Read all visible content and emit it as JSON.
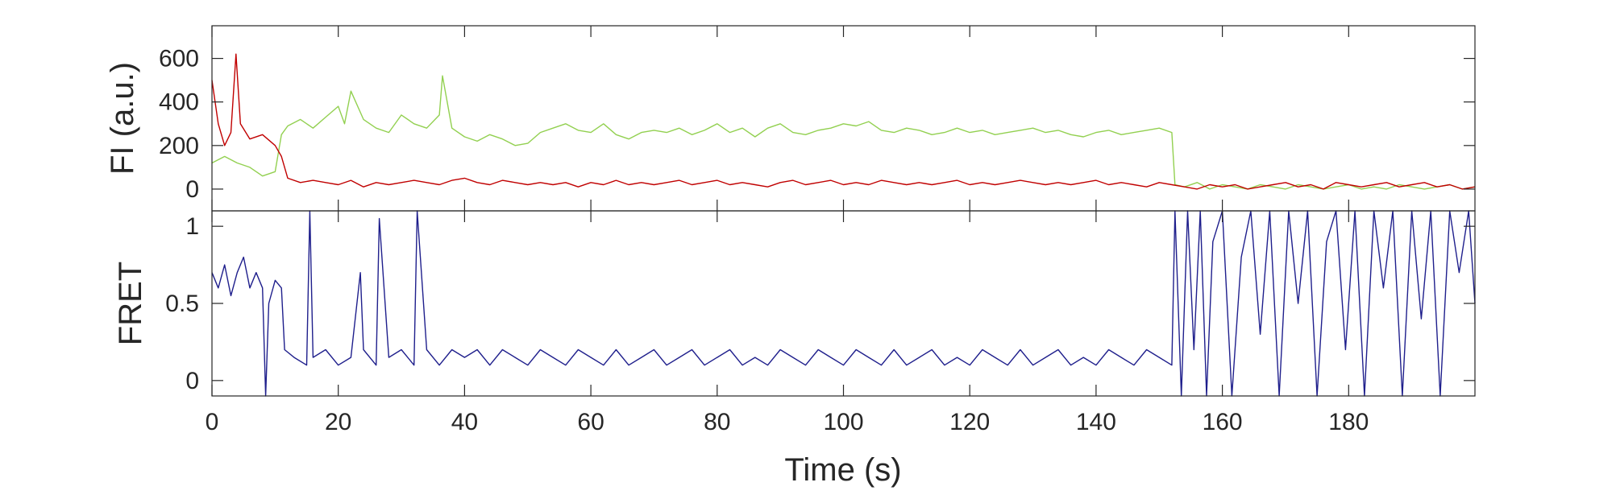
{
  "chart_data": [
    {
      "type": "line",
      "ylabel": "FI (a.u.)",
      "xlim": [
        0,
        200
      ],
      "ylim": [
        -100,
        750
      ],
      "yticks": [
        0,
        200,
        400,
        600
      ],
      "grid": false,
      "series": [
        {
          "color": "#92d050",
          "x": [
            0,
            2,
            4,
            6,
            8,
            10,
            11,
            12,
            14,
            16,
            18,
            20,
            21,
            22,
            24,
            26,
            28,
            30,
            32,
            34,
            36,
            36.5,
            38,
            40,
            42,
            44,
            46,
            48,
            50,
            52,
            54,
            56,
            58,
            60,
            62,
            64,
            66,
            68,
            70,
            72,
            74,
            76,
            78,
            80,
            82,
            84,
            86,
            88,
            90,
            92,
            94,
            96,
            98,
            100,
            102,
            104,
            106,
            108,
            110,
            112,
            114,
            116,
            118,
            120,
            122,
            124,
            126,
            128,
            130,
            132,
            134,
            136,
            138,
            140,
            142,
            144,
            146,
            148,
            150,
            152,
            152.5,
            154,
            156,
            158,
            160,
            162,
            164,
            166,
            168,
            170,
            172,
            174,
            176,
            178,
            180,
            182,
            184,
            186,
            188,
            190,
            192,
            194,
            196,
            198,
            200
          ],
          "values": [
            120,
            150,
            120,
            100,
            60,
            80,
            250,
            290,
            320,
            280,
            330,
            380,
            300,
            450,
            320,
            280,
            260,
            340,
            300,
            280,
            340,
            520,
            280,
            240,
            220,
            250,
            230,
            200,
            210,
            260,
            280,
            300,
            270,
            260,
            300,
            250,
            230,
            260,
            270,
            260,
            280,
            250,
            270,
            300,
            260,
            280,
            240,
            280,
            300,
            260,
            250,
            270,
            280,
            300,
            290,
            310,
            270,
            260,
            280,
            270,
            250,
            260,
            280,
            260,
            270,
            250,
            260,
            270,
            280,
            260,
            270,
            250,
            240,
            260,
            270,
            250,
            260,
            270,
            280,
            260,
            20,
            10,
            30,
            0,
            20,
            10,
            0,
            20,
            10,
            0,
            20,
            10,
            0,
            10,
            20,
            0,
            10,
            0,
            20,
            10,
            0,
            10,
            20,
            0,
            10
          ]
        },
        {
          "color": "#c00000",
          "x": [
            0,
            1,
            2,
            3,
            3.8,
            4.5,
            6,
            8,
            10,
            11,
            12,
            14,
            16,
            18,
            20,
            22,
            24,
            26,
            28,
            30,
            32,
            34,
            36,
            38,
            40,
            42,
            44,
            46,
            48,
            50,
            52,
            54,
            56,
            58,
            60,
            62,
            64,
            66,
            68,
            70,
            72,
            74,
            76,
            78,
            80,
            82,
            84,
            86,
            88,
            90,
            92,
            94,
            96,
            98,
            100,
            102,
            104,
            106,
            108,
            110,
            112,
            114,
            116,
            118,
            120,
            122,
            124,
            126,
            128,
            130,
            132,
            134,
            136,
            138,
            140,
            142,
            144,
            146,
            148,
            150,
            152,
            154,
            156,
            158,
            160,
            162,
            164,
            166,
            168,
            170,
            172,
            174,
            176,
            178,
            180,
            182,
            184,
            186,
            188,
            190,
            192,
            194,
            196,
            198,
            200
          ],
          "values": [
            500,
            300,
            200,
            260,
            620,
            300,
            230,
            250,
            200,
            150,
            50,
            30,
            40,
            30,
            20,
            40,
            10,
            30,
            20,
            30,
            40,
            30,
            20,
            40,
            50,
            30,
            20,
            40,
            30,
            20,
            30,
            20,
            30,
            10,
            30,
            20,
            40,
            20,
            30,
            20,
            30,
            40,
            20,
            30,
            40,
            20,
            30,
            20,
            10,
            30,
            40,
            20,
            30,
            40,
            20,
            30,
            20,
            40,
            30,
            20,
            30,
            20,
            30,
            40,
            20,
            30,
            20,
            30,
            40,
            30,
            20,
            30,
            20,
            30,
            40,
            20,
            30,
            20,
            10,
            30,
            20,
            10,
            0,
            20,
            10,
            20,
            0,
            10,
            20,
            30,
            10,
            20,
            0,
            30,
            20,
            10,
            20,
            30,
            10,
            20,
            30,
            10,
            20,
            0,
            10
          ]
        }
      ]
    },
    {
      "type": "line",
      "xlabel": "Time (s)",
      "ylabel": "FRET",
      "xlim": [
        0,
        200
      ],
      "ylim": [
        -0.1,
        1.1
      ],
      "xticks": [
        0,
        20,
        40,
        60,
        80,
        100,
        120,
        140,
        160,
        180
      ],
      "yticks": [
        0,
        0.5,
        1
      ],
      "grid": false,
      "series": [
        {
          "color": "#1f1f8c",
          "x": [
            0,
            1,
            2,
            3,
            4,
            5,
            6,
            7,
            8,
            8.5,
            9,
            10,
            11,
            11.5,
            13,
            15,
            15.5,
            16,
            18,
            20,
            22,
            23.5,
            24,
            26,
            26.5,
            28,
            30,
            32,
            32.5,
            34,
            36,
            38,
            40,
            42,
            44,
            46,
            48,
            50,
            52,
            54,
            56,
            58,
            60,
            62,
            64,
            66,
            68,
            70,
            72,
            74,
            76,
            78,
            80,
            82,
            84,
            86,
            88,
            90,
            92,
            94,
            96,
            98,
            100,
            102,
            104,
            106,
            108,
            110,
            112,
            114,
            116,
            118,
            120,
            122,
            124,
            126,
            128,
            130,
            132,
            134,
            136,
            138,
            140,
            142,
            144,
            146,
            148,
            150,
            152,
            152.5,
            153.5,
            154.5,
            155.5,
            156.5,
            157.5,
            158.5,
            160,
            161.5,
            163,
            164.5,
            166,
            167.5,
            169,
            170.5,
            172,
            173.5,
            175,
            176.5,
            178,
            179.5,
            181,
            182.5,
            184,
            185.5,
            187,
            188.5,
            190,
            191.5,
            193,
            194.5,
            196,
            197.5,
            199,
            200
          ],
          "values": [
            0.7,
            0.6,
            0.75,
            0.55,
            0.7,
            0.8,
            0.6,
            0.7,
            0.6,
            -0.1,
            0.5,
            0.65,
            0.6,
            0.2,
            0.15,
            0.1,
            1.1,
            0.15,
            0.2,
            0.1,
            0.15,
            0.7,
            0.2,
            0.1,
            1.05,
            0.15,
            0.2,
            0.1,
            1.1,
            0.2,
            0.1,
            0.2,
            0.15,
            0.2,
            0.1,
            0.2,
            0.15,
            0.1,
            0.2,
            0.15,
            0.1,
            0.2,
            0.15,
            0.1,
            0.2,
            0.1,
            0.15,
            0.2,
            0.1,
            0.15,
            0.2,
            0.1,
            0.15,
            0.2,
            0.1,
            0.15,
            0.1,
            0.2,
            0.15,
            0.1,
            0.2,
            0.15,
            0.1,
            0.2,
            0.15,
            0.1,
            0.2,
            0.1,
            0.15,
            0.2,
            0.1,
            0.15,
            0.1,
            0.2,
            0.15,
            0.1,
            0.2,
            0.1,
            0.15,
            0.2,
            0.1,
            0.15,
            0.1,
            0.2,
            0.15,
            0.1,
            0.2,
            0.15,
            0.1,
            1.1,
            -0.1,
            1.1,
            0.2,
            1.1,
            -0.1,
            0.9,
            1.1,
            -0.1,
            0.8,
            1.1,
            0.3,
            1.1,
            -0.1,
            1.1,
            0.5,
            1.1,
            -0.1,
            0.9,
            1.1,
            0.2,
            1.1,
            -0.1,
            1.1,
            0.6,
            1.1,
            -0.1,
            1.1,
            0.4,
            1.1,
            -0.1,
            1.1,
            0.7,
            1.1,
            0.5
          ]
        }
      ]
    }
  ]
}
